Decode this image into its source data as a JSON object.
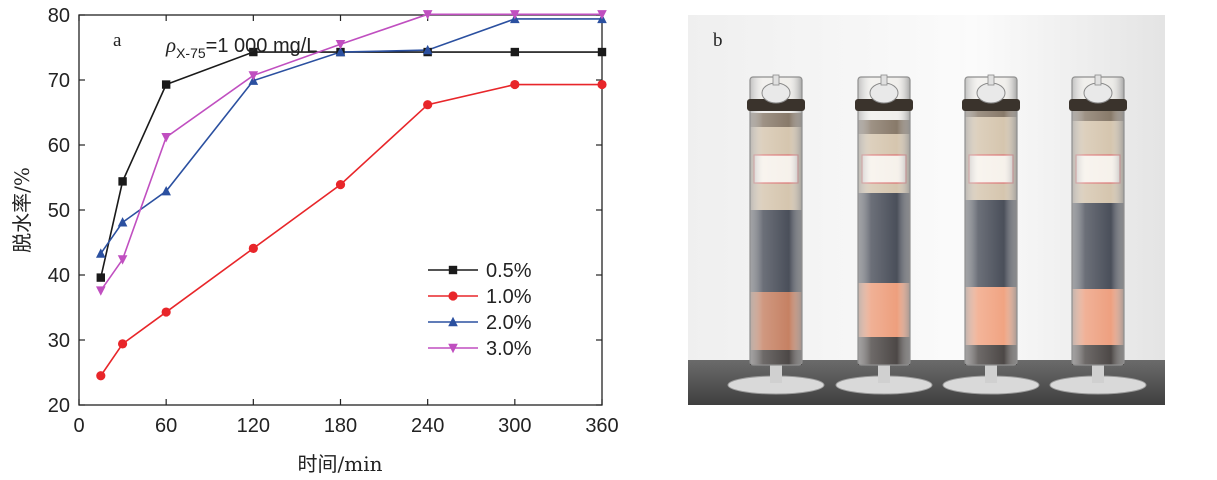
{
  "chart_data": {
    "type": "line",
    "panel_label": "a",
    "annotation": {
      "rho": "ρ",
      "subscript": "X-75",
      "text": "=1 000 mg/L"
    },
    "xlabel": "时间/min",
    "ylabel": "脱水率/%",
    "xlim": [
      0,
      360
    ],
    "ylim": [
      20,
      80
    ],
    "xticks": [
      0,
      60,
      120,
      180,
      240,
      300,
      360
    ],
    "yticks": [
      20,
      30,
      40,
      50,
      60,
      70,
      80
    ],
    "grid": false,
    "legend_position": "lower-right",
    "series": [
      {
        "name": "0.5%",
        "color": "#1a1a1a",
        "marker": "square",
        "x": [
          15,
          30,
          60,
          120,
          180,
          240,
          300,
          360
        ],
        "y": [
          39.6,
          54.4,
          69.3,
          74.3,
          74.3,
          74.3,
          74.3,
          74.3
        ]
      },
      {
        "name": "1.0%",
        "color": "#e8262a",
        "marker": "circle",
        "x": [
          15,
          30,
          60,
          120,
          180,
          240,
          300,
          360
        ],
        "y": [
          24.5,
          29.4,
          34.3,
          44.1,
          53.9,
          66.2,
          69.3,
          69.3
        ]
      },
      {
        "name": "2.0%",
        "color": "#2b50a0",
        "marker": "triangle-up",
        "x": [
          15,
          30,
          60,
          120,
          180,
          240,
          300,
          360
        ],
        "y": [
          43.3,
          48.1,
          52.9,
          69.9,
          74.3,
          74.6,
          79.4,
          79.4
        ]
      },
      {
        "name": "3.0%",
        "color": "#c04fc0",
        "marker": "triangle-down",
        "x": [
          15,
          30,
          60,
          120,
          180,
          240,
          300,
          360
        ],
        "y": [
          37.6,
          42.4,
          61.2,
          70.7,
          75.5,
          80.1,
          80.1,
          80.1
        ]
      }
    ]
  },
  "photo": {
    "panel_label": "b"
  }
}
